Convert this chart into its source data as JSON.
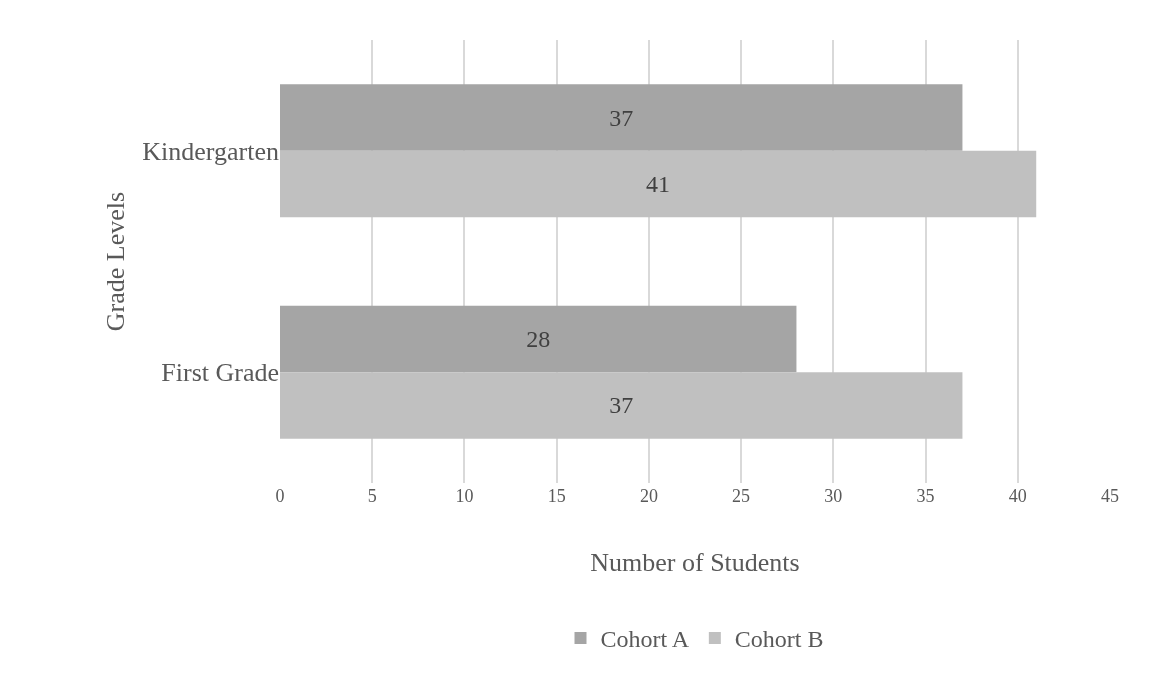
{
  "chart_data": {
    "type": "bar",
    "orientation": "horizontal",
    "categories": [
      "Kindergarten",
      "First Grade"
    ],
    "series": [
      {
        "name": "Cohort A",
        "color": "#a5a5a5",
        "values": [
          37,
          28
        ]
      },
      {
        "name": "Cohort B",
        "color": "#c0c0c0",
        "values": [
          41,
          37
        ]
      }
    ],
    "xlabel": "Number of Students",
    "ylabel": "Grade Levels",
    "xlim": [
      0,
      45
    ],
    "xticks": [
      0,
      5,
      10,
      15,
      20,
      25,
      30,
      35,
      40,
      45
    ],
    "grid": "x",
    "legend": "bottom",
    "data_labels": true
  }
}
